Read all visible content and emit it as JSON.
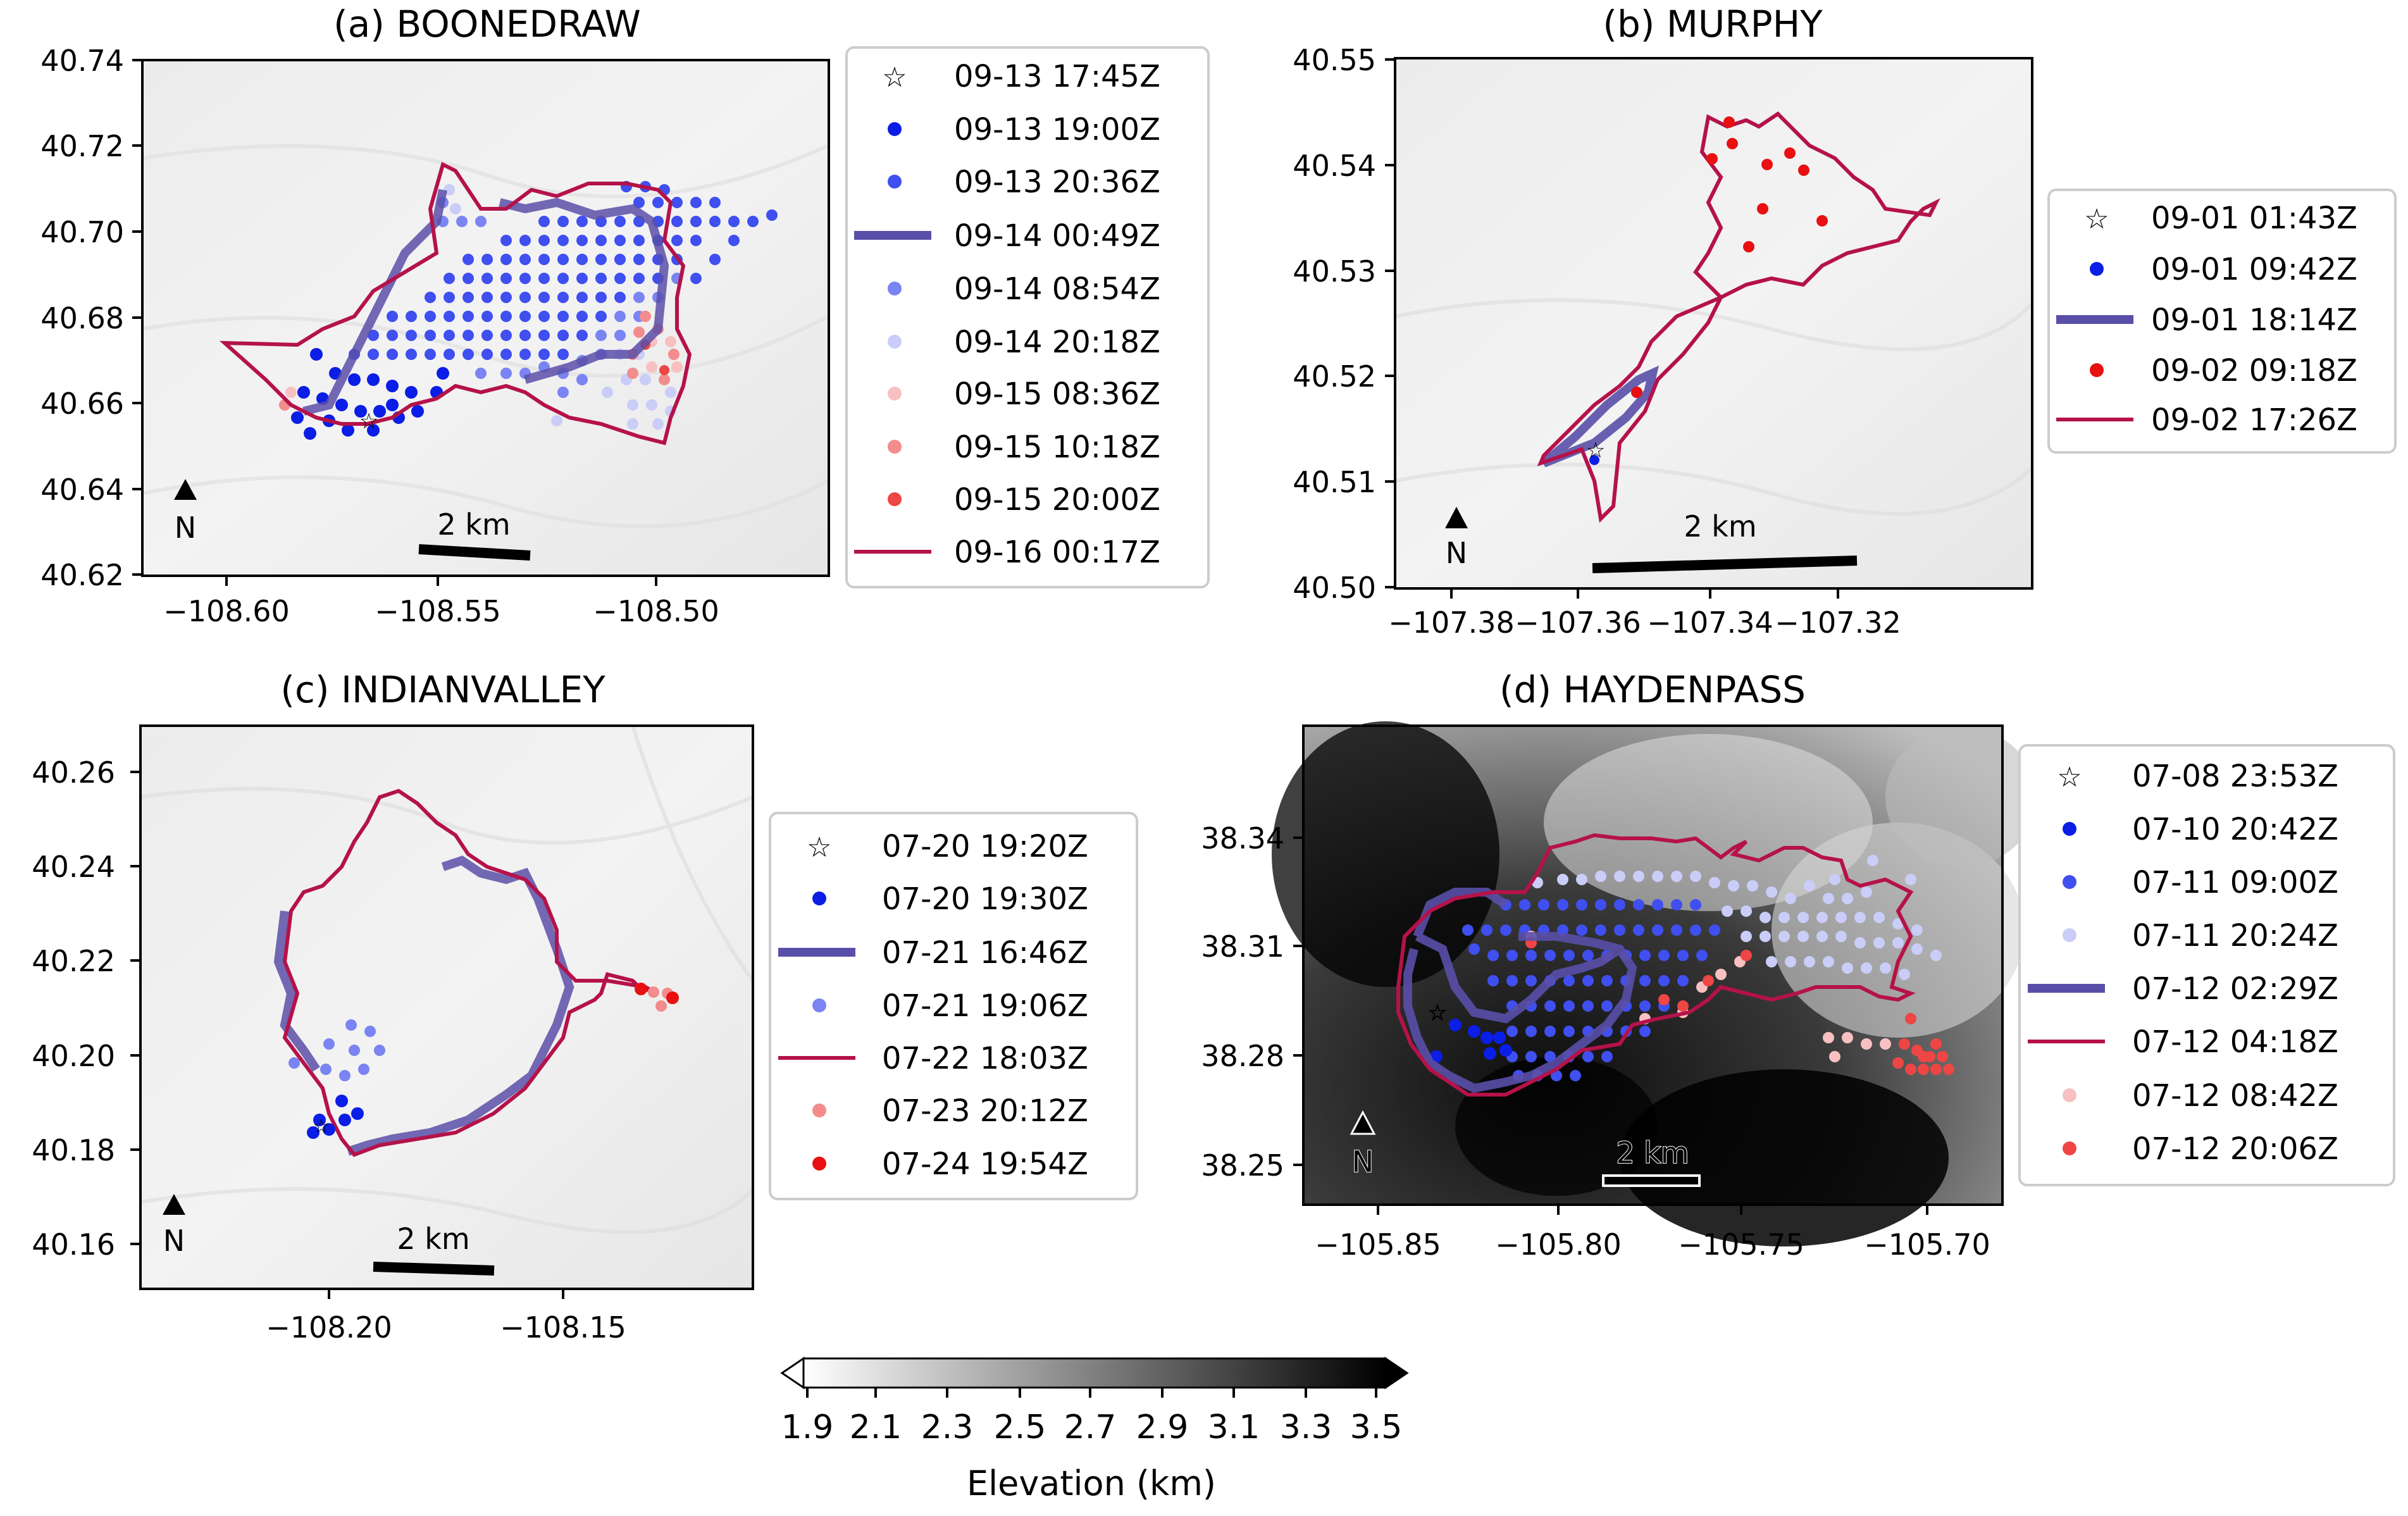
{
  "figure": {
    "colorbar": {
      "label": "Elevation (km)",
      "ticks": [
        "1.9",
        "2.1",
        "2.3",
        "2.5",
        "2.7",
        "2.9",
        "3.1",
        "3.3",
        "3.5"
      ],
      "colors": {
        "low": "#ffffff",
        "high": "#000000"
      }
    },
    "colors": {
      "ignition_star": "#000000",
      "perimeter_purple": "#5a4fa8",
      "perimeter_crimson": "#b5124a",
      "blue_1": "#0a1ee6",
      "blue_2": "#3f4ff0",
      "blue_3": "#7a84f2",
      "blue_4": "#c9cdf7",
      "red_1": "#f8c0c0",
      "red_2": "#f38c8c",
      "red_3": "#ee4545",
      "red_4": "#e81010"
    },
    "panels": [
      {
        "title": "(a) BOONEDRAW",
        "north_label": "N",
        "scalebar_label": "2 km",
        "background": "light",
        "xticks": [
          "−108.60",
          "−108.55",
          "−108.50"
        ],
        "yticks": [
          "40.74",
          "40.72",
          "40.70",
          "40.68",
          "40.66",
          "40.64",
          "40.62"
        ],
        "legend": [
          {
            "label": "09-13 17:45Z",
            "marker": "star"
          },
          {
            "label": "09-13 19:00Z",
            "marker": "dot",
            "color": "#0a1ee6"
          },
          {
            "label": "09-13 20:36Z",
            "marker": "dot",
            "color": "#3f4ff0"
          },
          {
            "label": "09-14 00:49Z",
            "marker": "thickline",
            "color": "#5a4fa8"
          },
          {
            "label": "09-14 08:54Z",
            "marker": "dot",
            "color": "#7a84f2"
          },
          {
            "label": "09-14 20:18Z",
            "marker": "dot",
            "color": "#c9cdf7"
          },
          {
            "label": "09-15 08:36Z",
            "marker": "dot",
            "color": "#f8c0c0"
          },
          {
            "label": "09-15 10:18Z",
            "marker": "dot",
            "color": "#f38c8c"
          },
          {
            "label": "09-15 20:00Z",
            "marker": "dot",
            "color": "#ee4545"
          },
          {
            "label": "09-16 00:17Z",
            "marker": "thinline",
            "color": "#b5124a"
          }
        ]
      },
      {
        "title": "(b) MURPHY",
        "north_label": "N",
        "scalebar_label": "2 km",
        "background": "light",
        "xticks": [
          "−107.38",
          "−107.36",
          "−107.34",
          "−107.32"
        ],
        "yticks": [
          "40.55",
          "40.54",
          "40.53",
          "40.52",
          "40.51",
          "40.50"
        ],
        "legend": [
          {
            "label": "09-01 01:43Z",
            "marker": "star"
          },
          {
            "label": "09-01 09:42Z",
            "marker": "dot",
            "color": "#0a1ee6"
          },
          {
            "label": "09-01 18:14Z",
            "marker": "thickline",
            "color": "#5a4fa8"
          },
          {
            "label": "09-02 09:18Z",
            "marker": "dot",
            "color": "#e81010"
          },
          {
            "label": "09-02 17:26Z",
            "marker": "thinline",
            "color": "#b5124a"
          }
        ]
      },
      {
        "title": "(c) INDIANVALLEY",
        "north_label": "N",
        "scalebar_label": "2 km",
        "background": "light",
        "xticks": [
          "−108.20",
          "−108.15"
        ],
        "yticks": [
          "40.26",
          "40.24",
          "40.22",
          "40.20",
          "40.18",
          "40.16"
        ],
        "legend": [
          {
            "label": "07-20 19:20Z",
            "marker": "star"
          },
          {
            "label": "07-20 19:30Z",
            "marker": "dot",
            "color": "#0a1ee6"
          },
          {
            "label": "07-21 16:46Z",
            "marker": "thickline",
            "color": "#5a4fa8"
          },
          {
            "label": "07-21 19:06Z",
            "marker": "dot",
            "color": "#7a84f2"
          },
          {
            "label": "07-22 18:03Z",
            "marker": "thinline",
            "color": "#b5124a"
          },
          {
            "label": "07-23 20:12Z",
            "marker": "dot",
            "color": "#f38c8c"
          },
          {
            "label": "07-24 19:54Z",
            "marker": "dot",
            "color": "#e81010"
          }
        ]
      },
      {
        "title": "(d) HAYDENPASS",
        "north_label": "N",
        "scalebar_label": "2 km",
        "background": "dark",
        "xticks": [
          "−105.85",
          "−105.80",
          "−105.75",
          "−105.70"
        ],
        "yticks": [
          "38.34",
          "38.31",
          "38.28",
          "38.25"
        ],
        "legend": [
          {
            "label": "07-08 23:53Z",
            "marker": "star"
          },
          {
            "label": "07-10 20:42Z",
            "marker": "dot",
            "color": "#0a1ee6"
          },
          {
            "label": "07-11 09:00Z",
            "marker": "dot",
            "color": "#3f4ff0"
          },
          {
            "label": "07-11 20:24Z",
            "marker": "dot",
            "color": "#c9cdf7"
          },
          {
            "label": "07-12 02:29Z",
            "marker": "thickline",
            "color": "#5a4fa8"
          },
          {
            "label": "07-12 04:18Z",
            "marker": "thinline",
            "color": "#b5124a"
          },
          {
            "label": "07-12 08:42Z",
            "marker": "dot",
            "color": "#f8c0c0"
          },
          {
            "label": "07-12 20:06Z",
            "marker": "dot",
            "color": "#ee4545"
          }
        ]
      }
    ]
  }
}
